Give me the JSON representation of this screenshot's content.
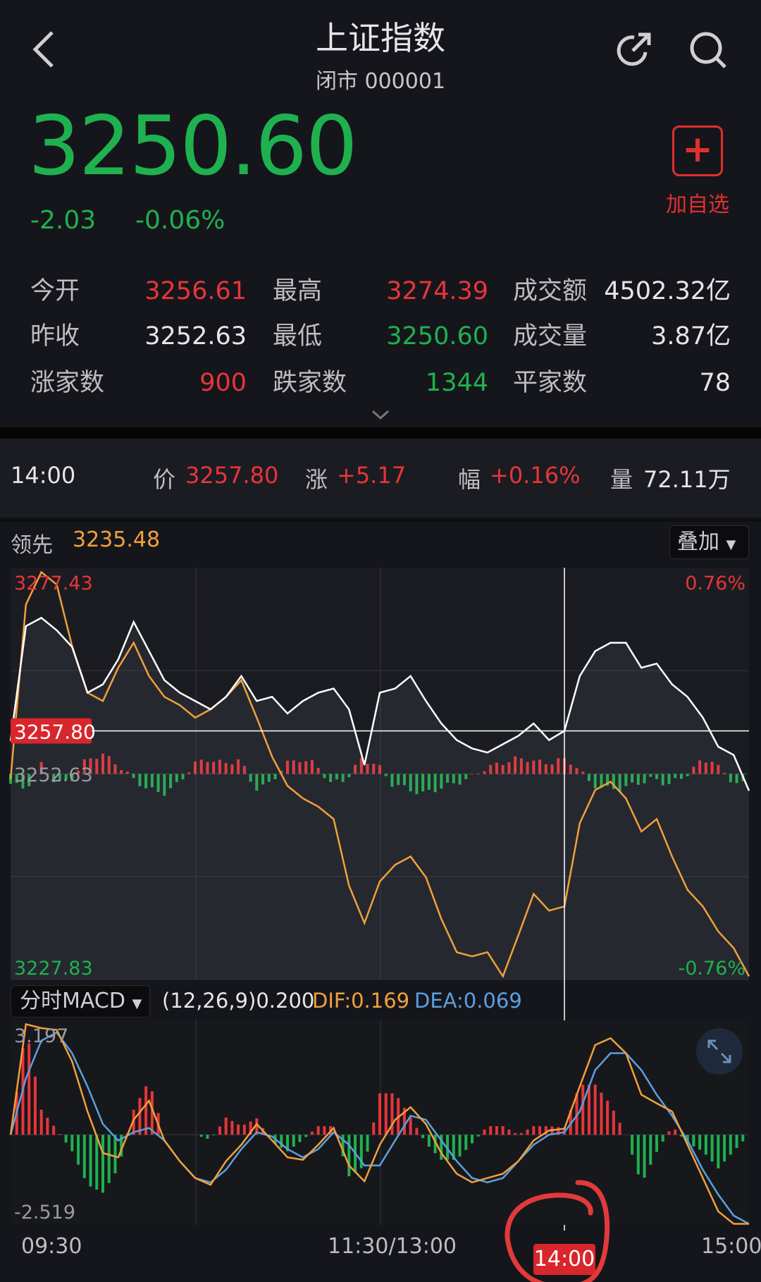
{
  "header": {
    "title": "上证指数",
    "subtitle": "闭市 000001",
    "back_icon": "chevron-left-icon",
    "share_icon": "share-icon",
    "search_icon": "search-icon"
  },
  "quote": {
    "price": "3250.60",
    "change": "-2.03",
    "change_pct": "-0.06%"
  },
  "watchlist": {
    "icon": "plus-icon",
    "label": "加自选"
  },
  "stats": [
    [
      {
        "label": "今开",
        "value": "3256.61",
        "color": "red"
      },
      {
        "label": "最高",
        "value": "3274.39",
        "color": "red"
      },
      {
        "label": "成交额",
        "value": "4502.32亿",
        "color": "white"
      }
    ],
    [
      {
        "label": "昨收",
        "value": "3252.63",
        "color": "white"
      },
      {
        "label": "最低",
        "value": "3250.60",
        "color": "green"
      },
      {
        "label": "成交量",
        "value": "3.87亿",
        "color": "white"
      }
    ],
    [
      {
        "label": "涨家数",
        "value": "900",
        "color": "red"
      },
      {
        "label": "跌家数",
        "value": "1344",
        "color": "green"
      },
      {
        "label": "平家数",
        "value": "78",
        "color": "white"
      }
    ]
  ],
  "infobar": {
    "time": "14:00",
    "price_label": "价",
    "price": "3257.80",
    "change_label": "涨",
    "change": "+5.17",
    "pct_label": "幅",
    "pct": "+0.16%",
    "volume_label": "量",
    "volume": "72.11万"
  },
  "lead": {
    "label": "领先",
    "value": "3235.48"
  },
  "overlay_button": "叠加",
  "colors": {
    "up": "#e8353a",
    "down": "#1fb14f",
    "price_line": "#ffffff",
    "lead_line": "#f0a03c",
    "dif": "#f0a03c",
    "dea": "#5aa0e0"
  },
  "macd_header": {
    "selector": "分时MACD",
    "params": "(12,26,9)0.200",
    "dif": "DIF:0.169",
    "dea": "DEA:0.069"
  },
  "chart_data": [
    {
      "type": "line",
      "ylim": [
        3227.83,
        3277.43
      ],
      "baseline": 3252.63,
      "labels": {
        "top_left": "3277.43",
        "top_right": "0.76%",
        "mid_left": "3252.63",
        "bottom_left": "3227.83",
        "bottom_right": "-0.76%",
        "crosshair_value": "3257.80"
      },
      "x_minutes": [
        0,
        5,
        10,
        15,
        20,
        25,
        30,
        35,
        40,
        45,
        50,
        55,
        60,
        65,
        70,
        75,
        80,
        85,
        90,
        95,
        100,
        105,
        110,
        115,
        120,
        125,
        130,
        135,
        140,
        145,
        150,
        155,
        160,
        165,
        170,
        175,
        180,
        185,
        190,
        195,
        200,
        205,
        210,
        215,
        220,
        225,
        230,
        235,
        240
      ],
      "series": [
        {
          "values": [
            3256.6,
            3270.4,
            3271.4,
            3269.9,
            3267.9,
            3262.4,
            3263.4,
            3266.4,
            3270.9,
            3267.4,
            3263.9,
            3262.4,
            3261.4,
            3260.4,
            3261.9,
            3264.4,
            3261.4,
            3261.9,
            3259.9,
            3261.4,
            3262.4,
            3262.9,
            3260.4,
            3253.7,
            3262.4,
            3262.9,
            3264.4,
            3261.4,
            3258.7,
            3256.7,
            3255.7,
            3255.2,
            3256.2,
            3257.2,
            3258.7,
            3256.7,
            3257.8,
            3264.4,
            3267.4,
            3268.4,
            3268.4,
            3265.4,
            3265.9,
            3263.4,
            3261.9,
            3259.4,
            3255.9,
            3254.9,
            3250.6
          ]
        },
        {
          "values": [
            3252.0,
            3273.0,
            3276.9,
            3275.4,
            3268.0,
            3262.4,
            3261.4,
            3265.4,
            3268.4,
            3264.4,
            3261.9,
            3260.9,
            3259.4,
            3260.4,
            3261.9,
            3263.9,
            3259.4,
            3254.7,
            3251.2,
            3249.7,
            3248.7,
            3247.2,
            3239.2,
            3234.7,
            3239.7,
            3241.7,
            3242.7,
            3240.2,
            3235.2,
            3231.2,
            3230.7,
            3231.2,
            3228.3,
            3233.2,
            3238.2,
            3236.2,
            3236.7,
            3246.7,
            3250.7,
            3251.7,
            3249.7,
            3245.7,
            3247.2,
            3242.7,
            3238.7,
            3236.7,
            3233.7,
            3231.7,
            3228.3
          ]
        }
      ],
      "flow": [
        -2,
        -3,
        2,
        -2,
        -1,
        3,
        4,
        2,
        -1,
        -3,
        -4,
        -2,
        2,
        3,
        2,
        3,
        -3,
        -2,
        2,
        3,
        2,
        -2,
        -1,
        3,
        2,
        -2,
        -3,
        -4,
        -3,
        -2,
        -1,
        1,
        2,
        3,
        3,
        2,
        3,
        2,
        -2,
        -3,
        -3,
        -2,
        -1,
        -2,
        -1,
        2,
        3,
        -1,
        -2
      ],
      "crosshair": {
        "time": "14:00",
        "price": 3257.8
      }
    },
    {
      "type": "line",
      "ylim": [
        -2.519,
        3.197
      ],
      "labels": {
        "top_left": "3.197",
        "bottom_left": "-2.519"
      },
      "series": [
        {
          "name": "DIF",
          "values": [
            0,
            3.09,
            2.98,
            2.93,
            2.05,
            0.65,
            -0.51,
            -0.63,
            0.42,
            0.95,
            -0.16,
            -0.74,
            -1.21,
            -1.4,
            -0.74,
            -0.28,
            0.3,
            -0.16,
            -0.63,
            -0.7,
            -0.28,
            0.19,
            -0.86,
            -1.3,
            -0.28,
            0.42,
            0.77,
            0.3,
            -0.51,
            -1.09,
            -1.33,
            -1.21,
            -1.09,
            -0.74,
            -0.16,
            0.12,
            0.17,
            1.35,
            2.51,
            2.7,
            2.28,
            1.12,
            0.88,
            0.65,
            -0.28,
            -1.21,
            -2.14,
            -2.49,
            -2.49
          ]
        },
        {
          "name": "DEA",
          "values": [
            0,
            1.58,
            2.63,
            2.86,
            2.28,
            1.35,
            0.3,
            -0.16,
            0.07,
            0.19,
            -0.16,
            -0.74,
            -1.21,
            -1.33,
            -0.98,
            -0.4,
            0.07,
            -0.05,
            -0.4,
            -0.63,
            -0.4,
            0.07,
            -0.28,
            -0.86,
            -0.86,
            -0.16,
            0.53,
            0.42,
            -0.16,
            -0.74,
            -1.21,
            -1.33,
            -1.21,
            -0.74,
            -0.28,
            0.0,
            0.07,
            0.65,
            1.81,
            2.28,
            2.28,
            1.81,
            1.12,
            0.53,
            -0.16,
            -0.98,
            -1.67,
            -2.26,
            -2.49
          ]
        }
      ]
    }
  ],
  "time_axis": {
    "start": "09:30",
    "mid": "11:30/13:00",
    "cursor": "14:00",
    "end": "15:00"
  },
  "expand_icon": "expand-icon"
}
